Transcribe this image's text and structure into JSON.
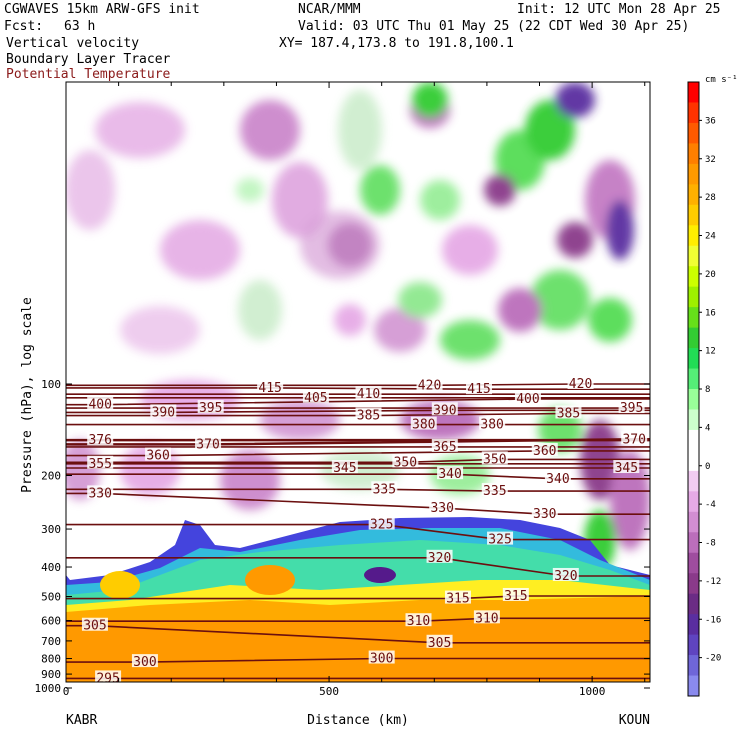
{
  "header": {
    "model": "CGWAVES 15km ARW-GFS init",
    "org": "NCAR/MMM",
    "init": "Init: 12 UTC Mon 28 Apr 25",
    "fcst_label": "Fcst:",
    "fcst_value": "63 h",
    "valid": "Valid: 03 UTC Thu 01 May 25 (22 CDT Wed 30 Apr 25)",
    "field1": "Vertical velocity",
    "field2": "Boundary Layer Tracer",
    "field3": "Potential Temperature",
    "xy": "XY= 187.4,173.8 to 191.8,100.1"
  },
  "colors": {
    "theta_contour": "#6b0f0f",
    "field3_text": "#8b1a1a"
  },
  "chart_data": {
    "type": "heatmap",
    "ylabel": "Pressure (hPa), log scale",
    "xlabel": "Distance (km)",
    "x_ticks": [
      0,
      500,
      1000
    ],
    "x_tick_labels": [
      "0",
      "500",
      "1000"
    ],
    "xlim": [
      0,
      1110
    ],
    "y_ticks": [
      100,
      200,
      300,
      400,
      500,
      600,
      700,
      800,
      900,
      1000
    ],
    "y_tick_labels": [
      "100",
      "200",
      "300",
      "400",
      "500",
      "600",
      "700",
      "800",
      "900",
      "1000"
    ],
    "y_scale": "log",
    "start_label": "KABR",
    "end_label": "KOUN",
    "colorbar": {
      "unit": "cm s⁻¹",
      "tick_values": [
        36,
        32,
        28,
        24,
        20,
        16,
        12,
        8,
        4,
        0,
        -4,
        -8,
        -12,
        -16,
        -20
      ],
      "tick_labels": [
        "36",
        "32",
        "28",
        "24",
        "20",
        "16",
        "12",
        "8",
        "4",
        "0",
        "-4",
        "-8",
        "-12",
        "-16",
        "-20"
      ],
      "colors": [
        "#ff0000",
        "#ff3300",
        "#ff5a00",
        "#ff7f00",
        "#ff9a00",
        "#ffb000",
        "#ffcc00",
        "#ffee00",
        "#f0ff33",
        "#ccff00",
        "#9ef000",
        "#66e01a",
        "#33cc33",
        "#22dd55",
        "#55ee77",
        "#99ff99",
        "#ccffcc",
        "#ffffff",
        "#ffffff",
        "#f2ccf2",
        "#e6aae6",
        "#d28ed2",
        "#bb6ebb",
        "#9f4d9f",
        "#8a3a8a",
        "#6b2c85",
        "#5a2ea0",
        "#5f44c0",
        "#6f66d8",
        "#8a8aee"
      ]
    },
    "theta_labels": [
      {
        "v": "415",
        "x": 388,
        "p": 103
      },
      {
        "v": "420",
        "x": 691,
        "p": 101
      },
      {
        "v": "415",
        "x": 785,
        "p": 104
      },
      {
        "v": "420",
        "x": 978,
        "p": 100
      },
      {
        "v": "400",
        "x": 65,
        "p": 117
      },
      {
        "v": "405",
        "x": 475,
        "p": 111
      },
      {
        "v": "410",
        "x": 575,
        "p": 108
      },
      {
        "v": "400",
        "x": 878,
        "p": 112
      },
      {
        "v": "390",
        "x": 185,
        "p": 124
      },
      {
        "v": "395",
        "x": 275,
        "p": 120
      },
      {
        "v": "385",
        "x": 575,
        "p": 127
      },
      {
        "v": "390",
        "x": 720,
        "p": 122
      },
      {
        "v": "385",
        "x": 955,
        "p": 125
      },
      {
        "v": "395",
        "x": 1075,
        "p": 120
      },
      {
        "v": "380",
        "x": 680,
        "p": 136
      },
      {
        "v": "380",
        "x": 810,
        "p": 136
      },
      {
        "v": "376",
        "x": 65,
        "p": 153
      },
      {
        "v": "370",
        "x": 270,
        "p": 158
      },
      {
        "v": "370",
        "x": 1080,
        "p": 152
      },
      {
        "v": "365",
        "x": 720,
        "p": 161
      },
      {
        "v": "360",
        "x": 175,
        "p": 172
      },
      {
        "v": "360",
        "x": 910,
        "p": 166
      },
      {
        "v": "355",
        "x": 65,
        "p": 183
      },
      {
        "v": "345",
        "x": 530,
        "p": 189
      },
      {
        "v": "350",
        "x": 645,
        "p": 181
      },
      {
        "v": "350",
        "x": 815,
        "p": 177
      },
      {
        "v": "340",
        "x": 730,
        "p": 198
      },
      {
        "v": "345",
        "x": 1065,
        "p": 189
      },
      {
        "v": "340",
        "x": 935,
        "p": 205
      },
      {
        "v": "335",
        "x": 605,
        "p": 222
      },
      {
        "v": "335",
        "x": 815,
        "p": 225
      },
      {
        "v": "330",
        "x": 65,
        "p": 229
      },
      {
        "v": "330",
        "x": 715,
        "p": 256
      },
      {
        "v": "330",
        "x": 910,
        "p": 268
      },
      {
        "v": "325",
        "x": 600,
        "p": 290
      },
      {
        "v": "325",
        "x": 825,
        "p": 325
      },
      {
        "v": "320",
        "x": 710,
        "p": 373
      },
      {
        "v": "320",
        "x": 950,
        "p": 428
      },
      {
        "v": "315",
        "x": 745,
        "p": 508
      },
      {
        "v": "315",
        "x": 855,
        "p": 498
      },
      {
        "v": "310",
        "x": 670,
        "p": 603
      },
      {
        "v": "310",
        "x": 800,
        "p": 590
      },
      {
        "v": "305",
        "x": 55,
        "p": 624
      },
      {
        "v": "305",
        "x": 710,
        "p": 710
      },
      {
        "v": "300",
        "x": 150,
        "p": 822
      },
      {
        "v": "300",
        "x": 600,
        "p": 800
      },
      {
        "v": "295",
        "x": 80,
        "p": 930
      }
    ]
  }
}
